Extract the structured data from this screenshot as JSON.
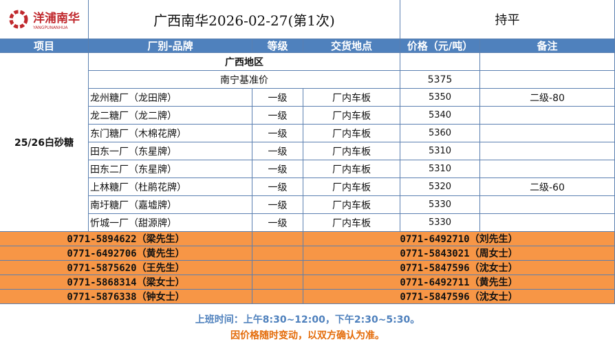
{
  "logo": {
    "name": "洋浦南华",
    "sub": "YANGPUNANHUA"
  },
  "title": "广西南华2026-02-27(第1次)",
  "trend": "持平",
  "headers": [
    "项目",
    "厂别-品牌",
    "等级",
    "交货地点",
    "价格（元/吨）",
    "备注"
  ],
  "item": "25/26白砂糖",
  "region": "广西地区",
  "benchmark": {
    "label": "南宁基准价",
    "price": "5375"
  },
  "rows": [
    {
      "factory": "龙州糖厂（龙田牌）",
      "grade": "一级",
      "place": "厂内车板",
      "price": "5350",
      "note": "二级-80"
    },
    {
      "factory": "龙二糖厂（龙二牌）",
      "grade": "一级",
      "place": "厂内车板",
      "price": "5340",
      "note": ""
    },
    {
      "factory": "东门糖厂（木棉花牌）",
      "grade": "一级",
      "place": "厂内车板",
      "price": "5360",
      "note": ""
    },
    {
      "factory": "田东一厂（东星牌）",
      "grade": "一级",
      "place": "厂内车板",
      "price": "5310",
      "note": ""
    },
    {
      "factory": "田东二厂（东星牌）",
      "grade": "一级",
      "place": "厂内车板",
      "price": "5310",
      "note": ""
    },
    {
      "factory": "上林糖厂（杜鹃花牌）",
      "grade": "一级",
      "place": "厂内车板",
      "price": "5320",
      "note": "二级-60"
    },
    {
      "factory": "南圩糖厂（嘉墟牌）",
      "grade": "一级",
      "place": "厂内车板",
      "price": "5330",
      "note": ""
    },
    {
      "factory": "忻城一厂（甜源牌）",
      "grade": "一级",
      "place": "厂内车板",
      "price": "5330",
      "note": ""
    }
  ],
  "contacts_left": [
    "0771-5894622（梁先生）",
    "0771-6492706（黄先生）",
    "0771-5875620（王先生）",
    "0771-5868314（梁女士）",
    "0771-5876338（钟女士）"
  ],
  "contacts_right": [
    "0771-6492710（刘先生）",
    "0771-5843021（周女士）",
    "0771-5847596（沈女士）",
    "0771-6492711（黄先生）",
    "0771-5847596（沈女士）"
  ],
  "footer": {
    "hours": "上班时间：上午8:30~12:00，下午2:30~5:30。",
    "notice": "因价格随时变动，以双方确认为准。"
  },
  "colors": {
    "header": "#4f81bd",
    "contacts": "#f79646",
    "hours": "#4f81bd",
    "notice": "#e46c0a",
    "logo": "#c0282d"
  }
}
